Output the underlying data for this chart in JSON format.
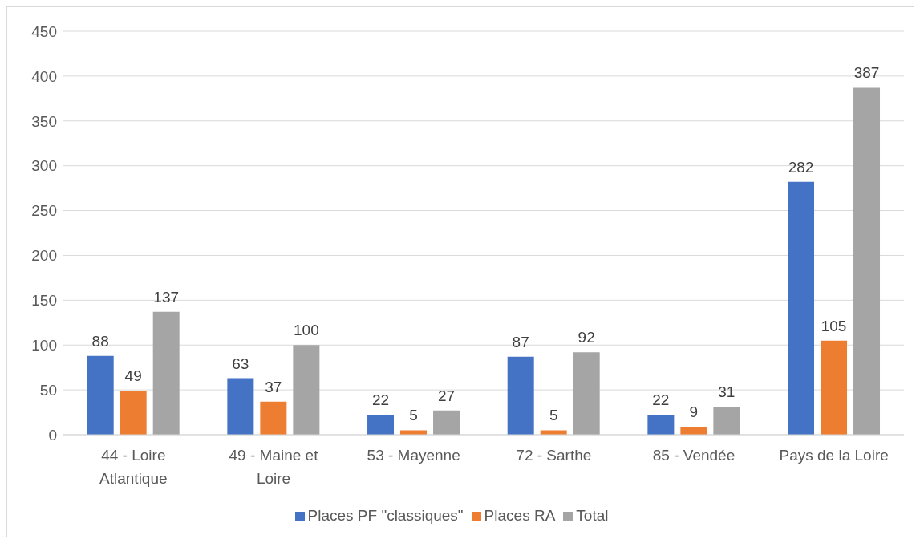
{
  "chart_data": {
    "type": "bar",
    "categories": [
      "44 - Loire Atlantique",
      "49 - Maine et Loire",
      "53 - Mayenne",
      "72 - Sarthe",
      "85 - Vendée",
      "Pays de la Loire"
    ],
    "series": [
      {
        "name": "Places PF \"classiques\"",
        "color": "#4472c4",
        "values": [
          88,
          63,
          22,
          87,
          22,
          282
        ]
      },
      {
        "name": "Places RA",
        "color": "#ed7d31",
        "values": [
          49,
          37,
          5,
          5,
          9,
          105
        ]
      },
      {
        "name": "Total",
        "color": "#a5a5a5",
        "values": [
          137,
          100,
          27,
          92,
          31,
          387
        ]
      }
    ],
    "ylim": [
      0,
      450
    ],
    "yticks": [
      0,
      50,
      100,
      150,
      200,
      250,
      300,
      350,
      400,
      450
    ],
    "grid": "y",
    "legend": "bottom",
    "data_labels": true
  }
}
